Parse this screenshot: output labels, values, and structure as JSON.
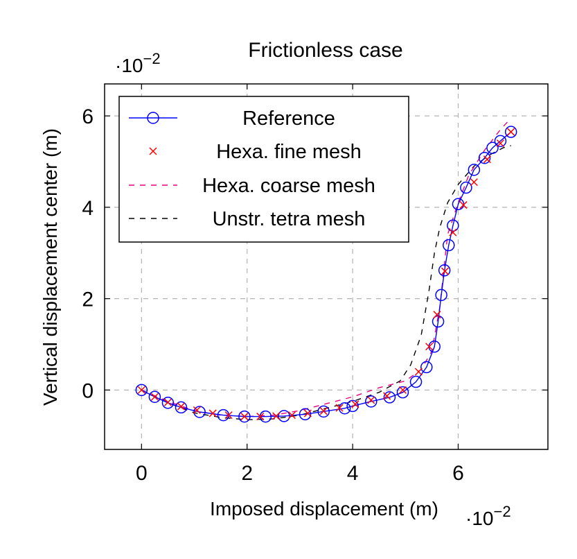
{
  "chart_data": {
    "type": "line",
    "title": "Frictionless case",
    "xlabel": "Imposed displacement (m)",
    "ylabel": "Vertical displacement center (m)",
    "x_multiplier": "·10",
    "x_multiplier_exp": "−2",
    "y_multiplier": "·10",
    "y_multiplier_exp": "−2",
    "xlim": [
      -0.7,
      7.7
    ],
    "ylim": [
      -1.3,
      6.7
    ],
    "xticks": [
      0,
      2,
      4,
      6
    ],
    "yticks": [
      0,
      2,
      4,
      6
    ],
    "xtick_labels": [
      "0",
      "2",
      "4",
      "6"
    ],
    "ytick_labels": [
      "0",
      "2",
      "4",
      "6"
    ],
    "grid": true,
    "legend_position": "top-left",
    "series": [
      {
        "name": "Reference",
        "color": "#0000ff",
        "style": "solid-circles",
        "x": [
          0,
          0.25,
          0.5,
          0.75,
          1.1,
          1.55,
          1.95,
          2.35,
          2.7,
          3.1,
          3.45,
          3.85,
          4.0,
          4.35,
          4.7,
          4.95,
          5.2,
          5.4,
          5.55,
          5.62,
          5.68,
          5.74,
          5.82,
          5.9,
          6.0,
          6.15,
          6.3,
          6.5,
          6.65,
          6.8,
          7.0
        ],
        "y": [
          0.0,
          -0.15,
          -0.28,
          -0.38,
          -0.48,
          -0.55,
          -0.58,
          -0.58,
          -0.57,
          -0.53,
          -0.47,
          -0.4,
          -0.35,
          -0.25,
          -0.16,
          -0.05,
          0.18,
          0.5,
          0.95,
          1.5,
          2.08,
          2.62,
          3.17,
          3.6,
          4.07,
          4.43,
          4.82,
          5.08,
          5.3,
          5.45,
          5.65
        ]
      },
      {
        "name": "Hexa. fine mesh",
        "color": "#ff0000",
        "style": "cross",
        "x": [
          0,
          0.25,
          0.5,
          0.75,
          1.05,
          1.35,
          1.65,
          1.95,
          2.25,
          2.55,
          2.85,
          3.15,
          3.45,
          3.75,
          4.05,
          4.35,
          4.65,
          4.95,
          5.25,
          5.45,
          5.6,
          5.75,
          5.9,
          6.1,
          6.3,
          6.55,
          6.8,
          7.0
        ],
        "y": [
          0.0,
          -0.15,
          -0.27,
          -0.36,
          -0.44,
          -0.51,
          -0.55,
          -0.58,
          -0.58,
          -0.57,
          -0.55,
          -0.51,
          -0.46,
          -0.39,
          -0.31,
          -0.22,
          -0.13,
          0.0,
          0.4,
          0.95,
          1.65,
          2.6,
          3.45,
          4.05,
          4.55,
          5.05,
          5.4,
          5.65
        ]
      },
      {
        "name": "Hexa. coarse mesh",
        "color": "#e6007e",
        "style": "dashed",
        "x": [
          0,
          0.5,
          1.0,
          1.5,
          2.0,
          2.5,
          3.0,
          3.5,
          4.0,
          4.5,
          5.0,
          5.3,
          5.5,
          5.65,
          5.8,
          6.0,
          6.2,
          6.5,
          6.8,
          7.0
        ],
        "y": [
          0.0,
          -0.25,
          -0.45,
          -0.55,
          -0.58,
          -0.55,
          -0.45,
          -0.3,
          -0.15,
          0.05,
          0.2,
          0.45,
          0.85,
          1.8,
          3.4,
          4.1,
          4.7,
          5.25,
          5.7,
          5.95
        ]
      },
      {
        "name": "Unstr. tetra mesh",
        "color": "#000000",
        "style": "dashed",
        "x": [
          0,
          0.5,
          1.0,
          1.5,
          2.0,
          2.5,
          3.0,
          3.5,
          4.0,
          4.5,
          4.9,
          5.1,
          5.3,
          5.45,
          5.55,
          5.65,
          5.8,
          6.0,
          6.3,
          6.6,
          6.85,
          7.0
        ],
        "y": [
          0.0,
          -0.28,
          -0.5,
          -0.6,
          -0.65,
          -0.63,
          -0.55,
          -0.4,
          -0.25,
          -0.05,
          0.2,
          0.55,
          1.2,
          2.2,
          3.0,
          3.55,
          4.1,
          4.5,
          4.9,
          5.15,
          5.3,
          5.35
        ]
      }
    ]
  }
}
